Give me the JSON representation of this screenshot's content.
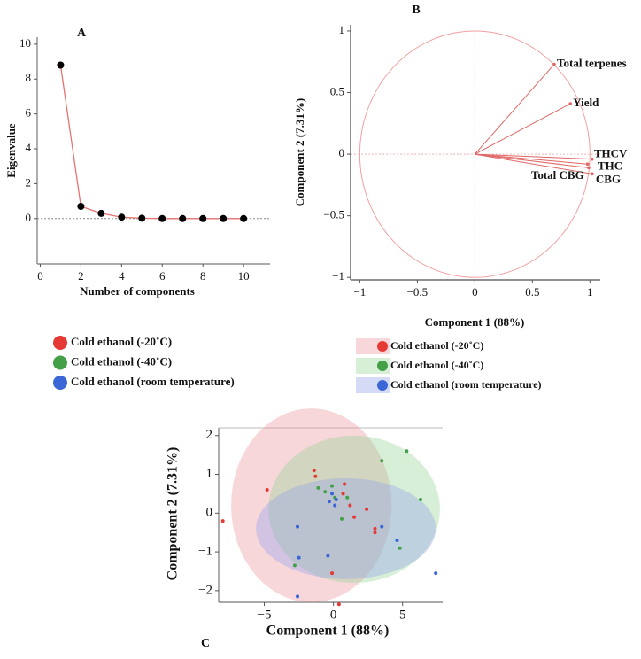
{
  "chart_data": [
    {
      "type": "line",
      "title": "A",
      "x_label": "Number of components",
      "y_label": "Eigenvalue",
      "x": [
        1,
        2,
        3,
        4,
        5,
        6,
        7,
        8,
        9,
        10
      ],
      "values": [
        8.8,
        0.7,
        0.3,
        0.08,
        0.02,
        0,
        0,
        0,
        0,
        0
      ],
      "color": "#e57373",
      "marker_color": "#000000",
      "xlim": [
        -0.15,
        11.3
      ],
      "xticks": [
        0,
        2,
        4,
        6,
        8,
        10
      ],
      "ylim": [
        -2.6,
        10.4
      ],
      "yticks": [
        0,
        2,
        4,
        6,
        8,
        10
      ]
    },
    {
      "type": "loading",
      "title": "B",
      "x_label": "Component 1 (88%)",
      "y_label": "Component 2 (7.31%)",
      "labels": [
        "Total terpenes",
        "Yield",
        "THCV",
        "THC",
        "CBG",
        "Total CBG"
      ],
      "x": [
        0.69,
        0.83,
        1.02,
        0.99,
        1.02,
        0.98
      ],
      "values": [
        0.73,
        0.41,
        -0.04,
        -0.11,
        -0.16,
        -0.08
      ],
      "color": "#e06666",
      "xlim": [
        -1.08,
        1.09
      ],
      "xticks": [
        {
          "value": -1,
          "label": "−1"
        },
        {
          "value": -0.5,
          "label": "−0.5"
        },
        0,
        0.5,
        1
      ],
      "ylim": [
        -1.02,
        1.05
      ],
      "yticks": [
        {
          "value": -1,
          "label": "−1"
        },
        {
          "value": -0.5,
          "label": "−0.5"
        },
        0,
        0.5,
        1
      ]
    },
    {
      "type": "scatter",
      "title": "C",
      "x_label": "Component 1 (88%)",
      "y_label": "Component 2 (7.31%)",
      "series": [
        {
          "name": "Cold ethanol (-20˚C)",
          "color": "#e53935",
          "x": [
            -8.0,
            -4.8,
            -1.4,
            -1.3,
            0.8,
            0.7,
            1.5,
            2.4,
            1.2,
            3.0,
            -0.1,
            0.4,
            3.0
          ],
          "values": [
            -0.2,
            0.6,
            1.1,
            0.95,
            0.75,
            0.5,
            -0.1,
            0.1,
            0.2,
            -0.4,
            -1.55,
            -2.35,
            -0.5
          ],
          "ellipse": {
            "cx": -1.6,
            "cy": 0.2,
            "rx": 5.8,
            "ry": 2.5
          }
        },
        {
          "name": "Cold ethanol (-40˚C)",
          "color": "#43a047",
          "x": [
            5.3,
            3.5,
            6.3,
            4.8,
            -2.8,
            -1.1,
            -0.1,
            0.6,
            0.1,
            1.0,
            -0.6
          ],
          "values": [
            1.6,
            1.35,
            0.35,
            -0.9,
            -1.35,
            0.65,
            0.7,
            -0.15,
            0.4,
            0.4,
            0.55
          ],
          "ellipse": {
            "cx": 1.5,
            "cy": 0.1,
            "rx": 6.2,
            "ry": 1.9
          }
        },
        {
          "name": "Cold ethanol (room temperature)",
          "color": "#3a66d6",
          "x": [
            -2.6,
            -2.5,
            -0.4,
            -2.6,
            3.5,
            4.6,
            7.4,
            0.1,
            -0.3,
            0.2,
            -0.1
          ],
          "values": [
            -0.35,
            -1.15,
            -1.1,
            -2.15,
            -0.35,
            -0.7,
            -1.55,
            0.2,
            0.3,
            0.35,
            0.5
          ],
          "ellipse": {
            "cx": 0.9,
            "cy": -0.4,
            "rx": 6.5,
            "ry": 1.3
          }
        }
      ],
      "legend": true,
      "xlim": [
        -8.3,
        7.9
      ],
      "xticks": [
        {
          "value": -5,
          "label": "−5"
        },
        0,
        5
      ],
      "ylim": [
        -2.3,
        2.2
      ],
      "yticks": [
        {
          "value": -2,
          "label": "−2"
        },
        {
          "value": -1,
          "label": "−1"
        },
        0,
        1,
        2
      ]
    }
  ]
}
